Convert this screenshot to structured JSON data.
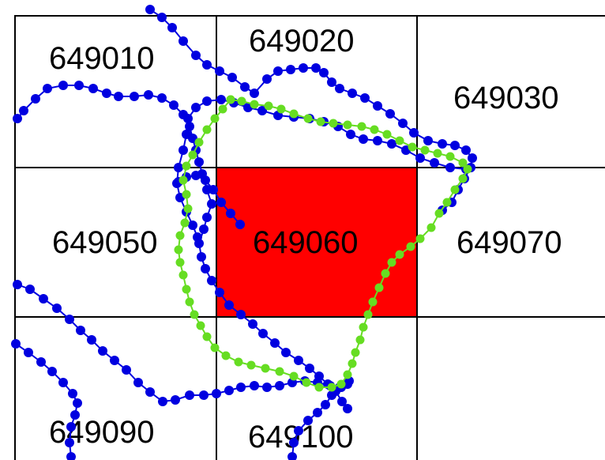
{
  "map": {
    "cells": [
      {
        "id": "649010",
        "label": "649010",
        "highlighted": false
      },
      {
        "id": "649020",
        "label": "649020",
        "highlighted": false
      },
      {
        "id": "649030",
        "label": "649030",
        "highlighted": false
      },
      {
        "id": "649050",
        "label": "649050",
        "highlighted": false
      },
      {
        "id": "649060",
        "label": "649060",
        "highlighted": true
      },
      {
        "id": "649070",
        "label": "649070",
        "highlighted": false
      },
      {
        "id": "649090",
        "label": "649090",
        "highlighted": false
      },
      {
        "id": "649100",
        "label": "649100",
        "highlighted": false
      }
    ],
    "colors": {
      "highlight_fill": "#ff0000",
      "track_blue": "#0000e0",
      "track_green": "#66dd22",
      "grid": "#000000"
    }
  }
}
